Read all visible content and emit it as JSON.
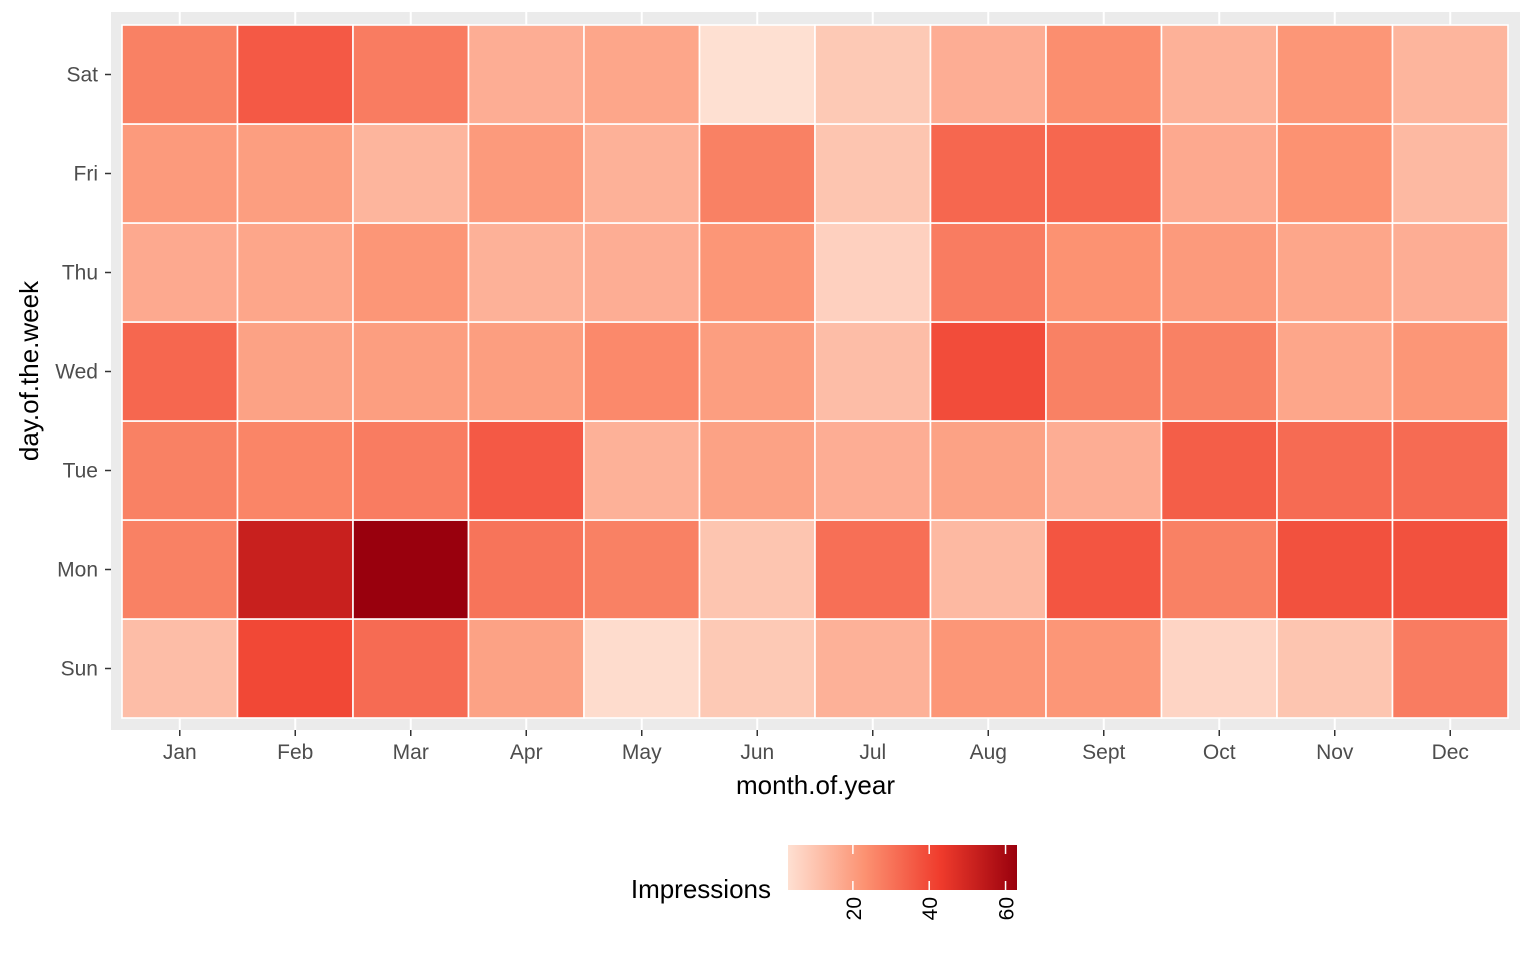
{
  "chart_data": {
    "type": "heatmap",
    "xlabel": "month.of.year",
    "ylabel": "day.of.the.week",
    "x_categories": [
      "Jan",
      "Feb",
      "Mar",
      "Apr",
      "May",
      "Jun",
      "Jul",
      "Aug",
      "Sept",
      "Oct",
      "Nov",
      "Dec"
    ],
    "y_categories": [
      "Sun",
      "Mon",
      "Tue",
      "Wed",
      "Thu",
      "Fri",
      "Sat"
    ],
    "values": [
      [
        12,
        40,
        32,
        19,
        4,
        9,
        15,
        22,
        22,
        6,
        10,
        28
      ],
      [
        27,
        52,
        63,
        30,
        27,
        10,
        31,
        13,
        37,
        27,
        38,
        38
      ],
      [
        27,
        26,
        28,
        36,
        15,
        19,
        16,
        19,
        16,
        35,
        32,
        32
      ],
      [
        33,
        19,
        20,
        20,
        25,
        20,
        12,
        39,
        27,
        27,
        18,
        22
      ],
      [
        17,
        18,
        22,
        15,
        16,
        22,
        7,
        28,
        23,
        21,
        18,
        16
      ],
      [
        21,
        20,
        14,
        21,
        15,
        27,
        10,
        33,
        33,
        17,
        23,
        13
      ],
      [
        27,
        36,
        28,
        16,
        18,
        3,
        9,
        16,
        24,
        15,
        22,
        14
      ]
    ],
    "legend": {
      "title": "Impressions",
      "position": "bottom",
      "min": 3,
      "max": 63,
      "ticks": [
        20,
        40,
        60
      ],
      "colors": [
        "#fee0d2",
        "#fc9272",
        "#ef3b2c",
        "#99000d"
      ]
    },
    "panel_background": "#ebebeb",
    "tile_border": "#ffffff",
    "grid": true
  }
}
